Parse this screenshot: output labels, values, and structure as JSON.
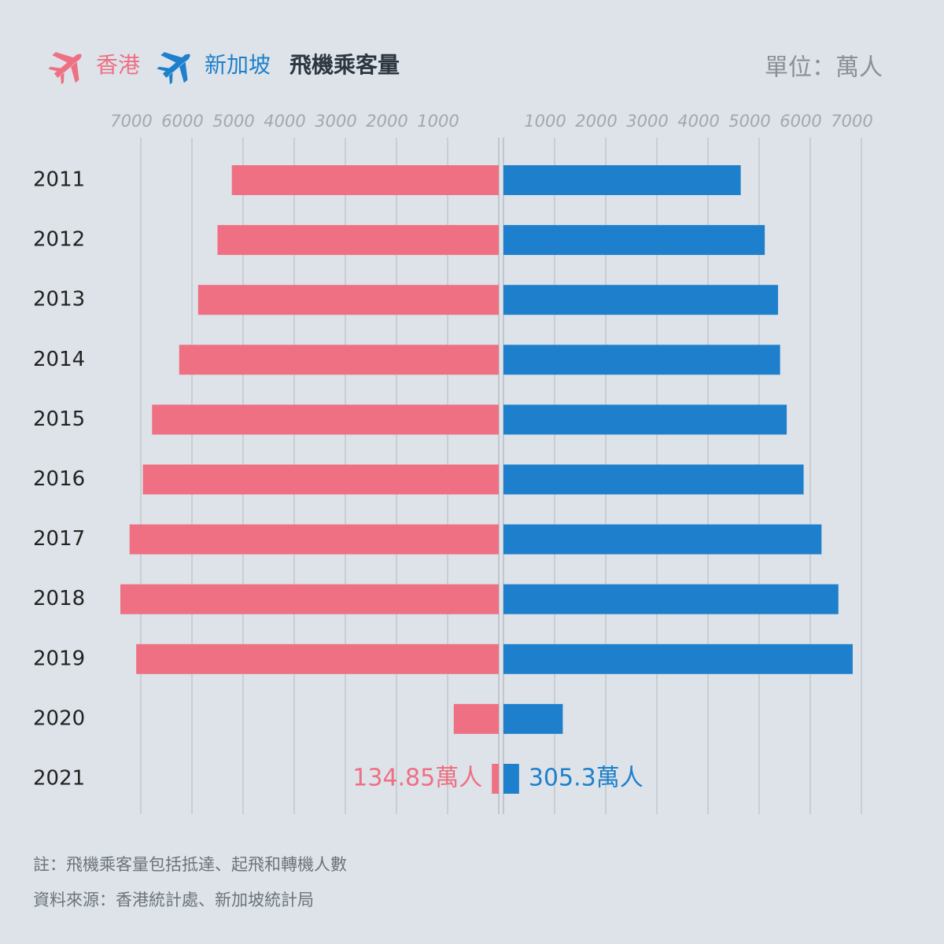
{
  "chart_data": {
    "type": "bar",
    "title": "飛機乘客量",
    "unit": "單位：萬人",
    "categories": [
      "2011",
      "2012",
      "2013",
      "2014",
      "2015",
      "2016",
      "2017",
      "2018",
      "2019",
      "2020",
      "2021"
    ],
    "series": [
      {
        "name": "香港",
        "color": "#ee7082",
        "values": [
          5220,
          5500,
          5880,
          6250,
          6780,
          6960,
          7220,
          7400,
          7090,
          880,
          134.85
        ],
        "value_labels": [
          null,
          null,
          null,
          null,
          null,
          null,
          null,
          null,
          null,
          null,
          "134.85萬人"
        ]
      },
      {
        "name": "新加坡",
        "color": "#1e80cc",
        "values": [
          4640,
          5110,
          5370,
          5410,
          5540,
          5870,
          6220,
          6550,
          6830,
          1160,
          305.3
        ],
        "value_labels": [
          null,
          null,
          null,
          null,
          null,
          null,
          null,
          null,
          null,
          null,
          "305.3萬人"
        ]
      }
    ],
    "xlim": [
      0,
      7500
    ],
    "xticks": [
      1000,
      2000,
      3000,
      4000,
      5000,
      6000,
      7000
    ],
    "grid": true,
    "notes": [
      "註：飛機乘客量包括抵達、起飛和轉機人數",
      "資料來源：香港統計處、新加坡統計局"
    ]
  }
}
